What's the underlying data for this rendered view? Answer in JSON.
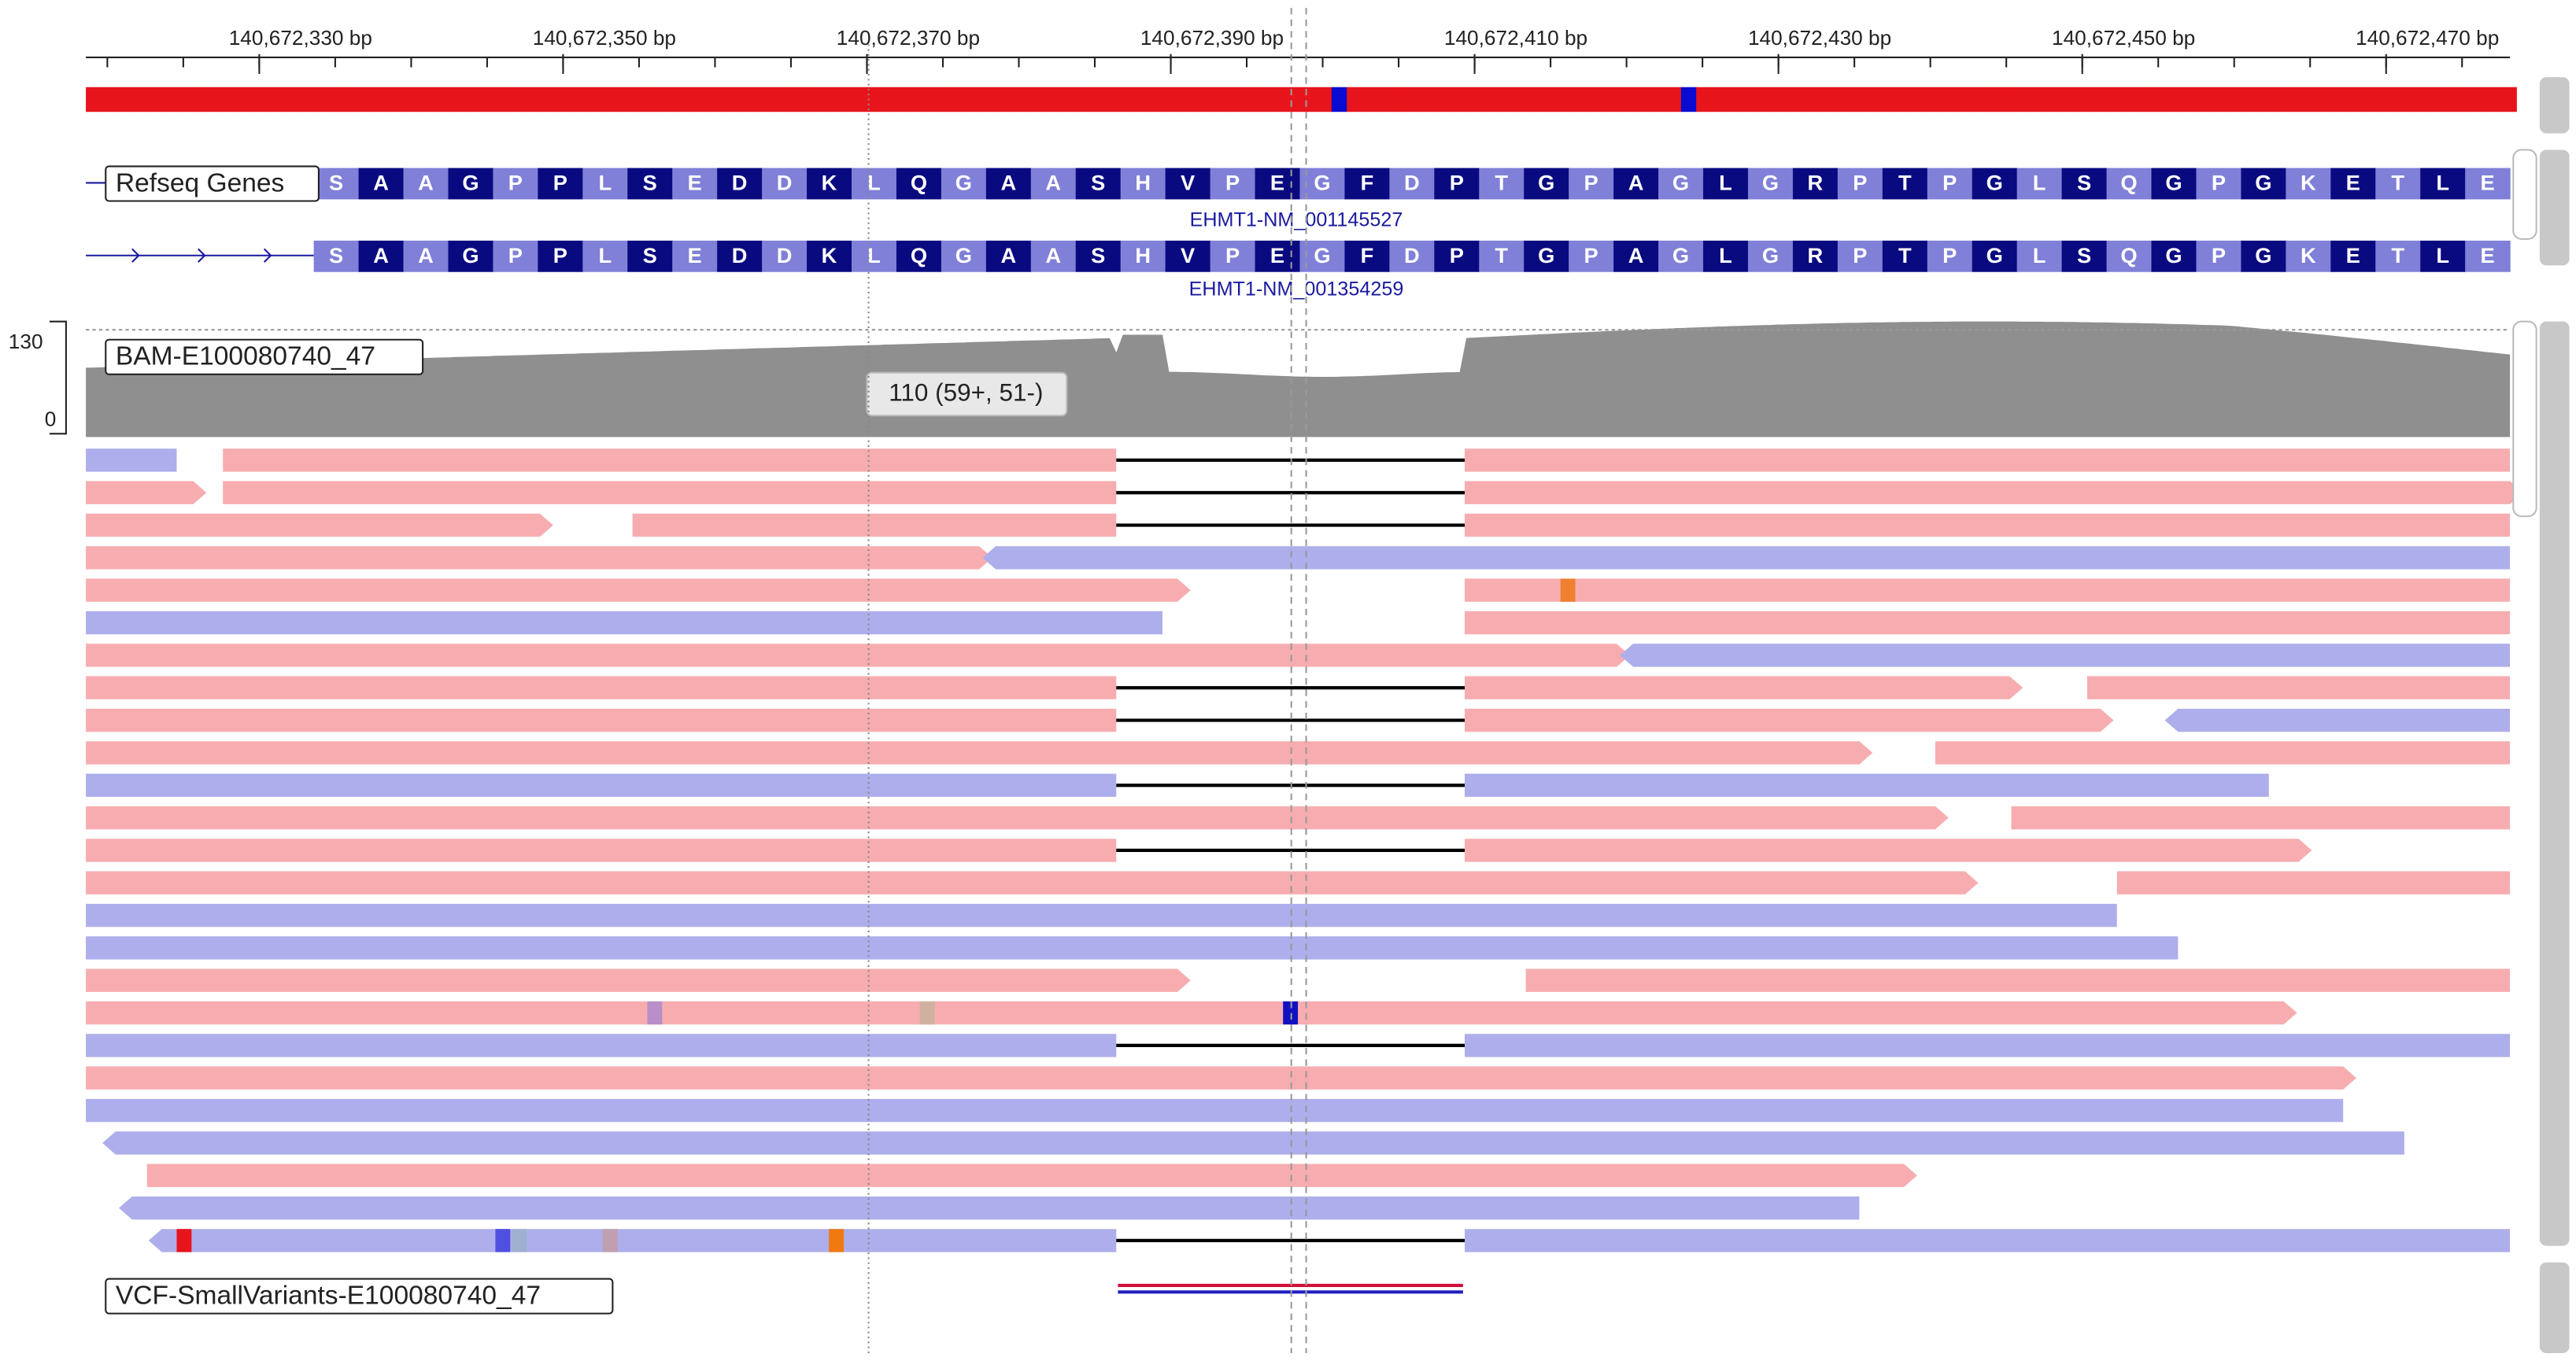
{
  "ruler": {
    "ticks": [
      "140,672,330 bp",
      "140,672,350 bp",
      "140,672,370 bp",
      "140,672,390 bp",
      "140,672,410 bp",
      "140,672,430 bp",
      "140,672,450 bp",
      "140,672,470 bp"
    ]
  },
  "tracks": {
    "refseq": {
      "name": "Refseq Genes",
      "amino_acids": [
        "S",
        "A",
        "A",
        "G",
        "P",
        "P",
        "L",
        "S",
        "E",
        "D",
        "D",
        "K",
        "L",
        "Q",
        "G",
        "A",
        "A",
        "S",
        "H",
        "V",
        "P",
        "E",
        "G",
        "F",
        "D",
        "P",
        "T",
        "G",
        "P",
        "A",
        "G",
        "L",
        "G",
        "R",
        "P",
        "T",
        "P",
        "G",
        "L",
        "S",
        "Q",
        "G",
        "P",
        "G",
        "K",
        "E",
        "T",
        "L",
        "E"
      ],
      "transcripts": [
        "EHMT1-NM_001145527",
        "EHMT1-NM_001354259"
      ]
    },
    "bam": {
      "name": "BAM-E100080740_47",
      "range_max": "130",
      "range_min": "0",
      "tooltip": "110 (59+, 51-)"
    },
    "vcf": {
      "name": "VCF-SmallVariants-E100080740_47"
    }
  }
}
